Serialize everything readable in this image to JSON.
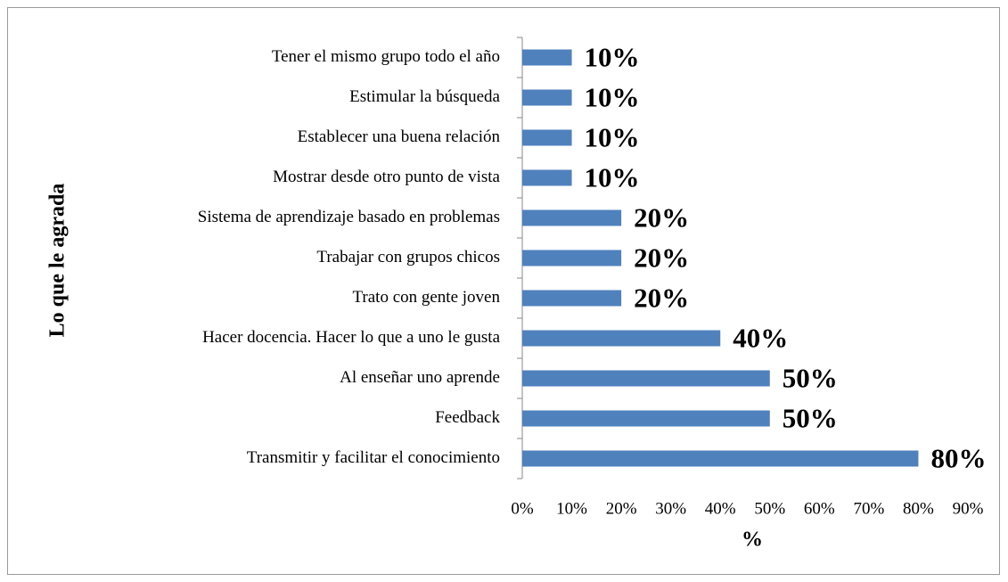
{
  "chart_data": {
    "type": "barh",
    "ylabel": "Lo que le agrada",
    "xlabel": "%",
    "categories": [
      "Tener el mismo grupo todo el año",
      "Estimular la búsqueda",
      "Establecer una buena relación",
      "Mostrar desde otro punto de vista",
      "Sistema de aprendizaje basado en problemas",
      "Trabajar con grupos chicos",
      "Trato con gente joven",
      "Hacer docencia. Hacer lo que a uno le gusta",
      "Al enseñar uno aprende",
      "Feedback",
      "Transmitir y facilitar el conocimiento"
    ],
    "values": [
      10,
      10,
      10,
      10,
      20,
      20,
      20,
      40,
      50,
      50,
      80
    ],
    "value_labels": [
      "10%",
      "10%",
      "10%",
      "10%",
      "20%",
      "20%",
      "20%",
      "40%",
      "50%",
      "50%",
      "80%"
    ],
    "color": "#4f81bd",
    "xlim": [
      0,
      90
    ],
    "xticks": [
      {
        "value": 0,
        "label": "0%"
      },
      {
        "value": 10,
        "label": "10%"
      },
      {
        "value": 20,
        "label": "20%"
      },
      {
        "value": 30,
        "label": "30%"
      },
      {
        "value": 40,
        "label": "40%"
      },
      {
        "value": 50,
        "label": "50%"
      },
      {
        "value": 60,
        "label": "60%"
      },
      {
        "value": 70,
        "label": "70%"
      },
      {
        "value": 80,
        "label": "80%"
      },
      {
        "value": 90,
        "label": "90%"
      }
    ],
    "grid": false
  }
}
